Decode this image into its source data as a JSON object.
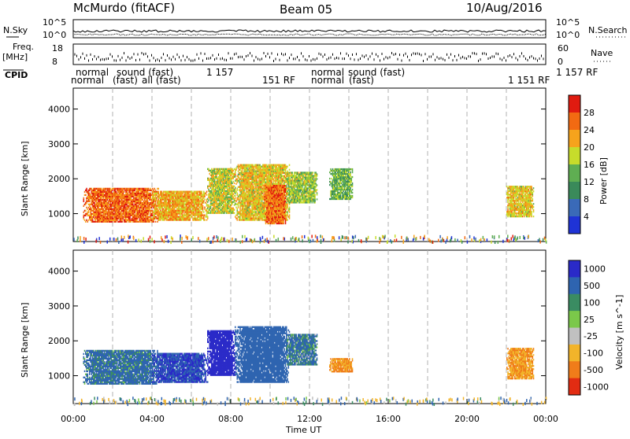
{
  "header": {
    "station": "McMurdo (fitACF)",
    "beam": "Beam 05",
    "date": "10/Aug/2016"
  },
  "strip_labels": {
    "nsky": "N.Sky",
    "nsearch": "N.Search",
    "freq_top": "Freq.",
    "freq_unit": "[MHz]",
    "nave": "Nave",
    "cpid": "CPID",
    "noise_ticks": [
      "10^5",
      "10^0"
    ],
    "freq_ticks": [
      "18",
      "8"
    ],
    "nave_ticks": [
      "60",
      "0"
    ]
  },
  "cpid_row1": [
    "normal",
    "sound (fast)",
    "1 157",
    "normal",
    "sound (fast)",
    "1 157 RF"
  ],
  "cpid_row2": [
    "normal",
    "(fast)",
    "all (fast)",
    "151 RF",
    "normal",
    "(fast)",
    "1 151 RF"
  ],
  "axis": {
    "x_title": "Time UT",
    "x_ticks": [
      "00:00",
      "04:00",
      "08:00",
      "12:00",
      "16:00",
      "20:00",
      "00:00"
    ]
  },
  "colors": {
    "power": [
      "#1f33d6",
      "#3a6ab8",
      "#3a8a5a",
      "#5fae52",
      "#c7dc2b",
      "#f6a31c",
      "#f26a12",
      "#e01b10"
    ],
    "velocity": [
      "#2a2ac8",
      "#2e64b0",
      "#3a8c62",
      "#7bc84a",
      "#c0c0c0",
      "#f2b42a",
      "#f07c1a",
      "#e22c12"
    ]
  },
  "chart_data": [
    {
      "type": "heatmap",
      "title": "",
      "xlabel": "Time UT",
      "ylabel": "Slant Range [km]",
      "xlim": [
        0,
        24
      ],
      "ylim": [
        200,
        4600
      ],
      "y_ticks": [
        "1000",
        "2000",
        "3000",
        "4000"
      ],
      "colorbar": {
        "label": "Power [dB]",
        "ticks": [
          "4",
          "8",
          "12",
          "16",
          "20",
          "24",
          "28"
        ],
        "range": [
          0,
          32
        ]
      },
      "regions": [
        {
          "t_start": 0.5,
          "t_end": 4.3,
          "r_low": 750,
          "r_high": 1700,
          "power": 26
        },
        {
          "t_start": 4.0,
          "t_end": 6.8,
          "r_low": 800,
          "r_high": 1650,
          "power": 22
        },
        {
          "t_start": 6.8,
          "t_end": 8.2,
          "r_low": 1000,
          "r_high": 2300,
          "power": 18
        },
        {
          "t_start": 8.2,
          "t_end": 11.0,
          "r_low": 800,
          "r_high": 2400,
          "power": 20
        },
        {
          "t_start": 9.7,
          "t_end": 10.8,
          "r_low": 700,
          "r_high": 1800,
          "power": 26
        },
        {
          "t_start": 10.8,
          "t_end": 12.4,
          "r_low": 1300,
          "r_high": 2200,
          "power": 16
        },
        {
          "t_start": 13.0,
          "t_end": 14.2,
          "r_low": 1400,
          "r_high": 2300,
          "power": 14
        },
        {
          "t_start": 22.0,
          "t_end": 23.4,
          "r_low": 900,
          "r_high": 1800,
          "power": 20
        }
      ]
    },
    {
      "type": "heatmap",
      "title": "",
      "xlabel": "Time UT",
      "ylabel": "Slant Range [km]",
      "xlim": [
        0,
        24
      ],
      "ylim": [
        200,
        4600
      ],
      "y_ticks": [
        "1000",
        "2000",
        "3000",
        "4000"
      ],
      "colorbar": {
        "label": "Velocity [m s^-1]",
        "ticks": [
          "1000",
          "500",
          "100",
          "25",
          "-25",
          "-100",
          "-500",
          "-1000"
        ],
        "range": [
          -1000,
          1000
        ]
      },
      "regions": [
        {
          "t_start": 0.5,
          "t_end": 4.3,
          "r_low": 750,
          "r_high": 1700,
          "velocity": 200
        },
        {
          "t_start": 4.0,
          "t_end": 6.8,
          "r_low": 800,
          "r_high": 1650,
          "velocity": 500
        },
        {
          "t_start": 6.8,
          "t_end": 8.2,
          "r_low": 1000,
          "r_high": 2300,
          "velocity": 800
        },
        {
          "t_start": 8.2,
          "t_end": 11.0,
          "r_low": 800,
          "r_high": 2400,
          "velocity": 300
        },
        {
          "t_start": 10.8,
          "t_end": 12.4,
          "r_low": 1300,
          "r_high": 2200,
          "velocity": 150
        },
        {
          "t_start": 13.0,
          "t_end": 14.2,
          "r_low": 1100,
          "r_high": 1500,
          "velocity": -500
        },
        {
          "t_start": 22.0,
          "t_end": 23.4,
          "r_low": 900,
          "r_high": 1800,
          "velocity": -500
        }
      ]
    }
  ]
}
